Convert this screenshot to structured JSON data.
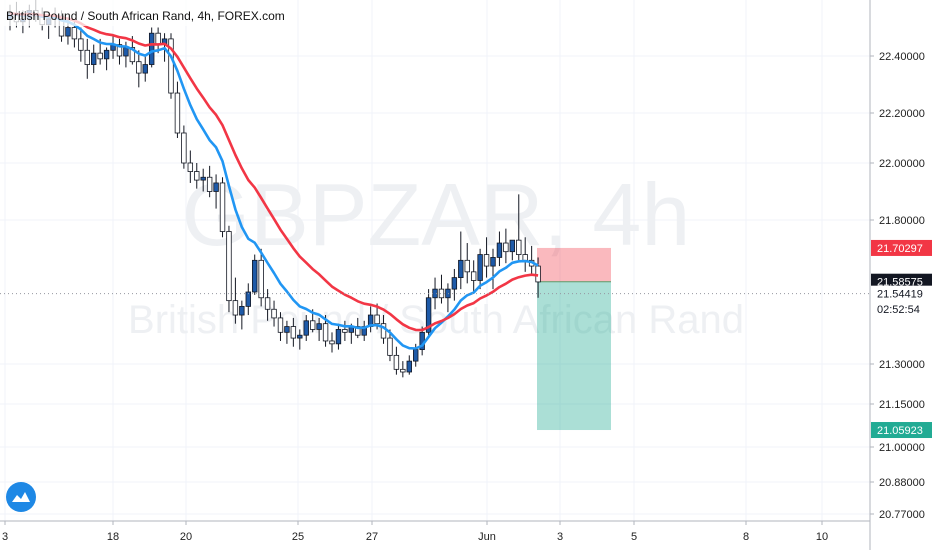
{
  "chart_data": {
    "type": "candlestick",
    "title": "British Pound / South African Rand, 4h, FOREX.com",
    "watermark_symbol": "GBPZAR, 4h",
    "watermark_name": "British Pound / South African Rand",
    "y_ticks": [
      "22.40000",
      "22.20000",
      "22.00000",
      "21.80000",
      "21.30000",
      "21.15000",
      "21.00000",
      "20.88000",
      "20.77000"
    ],
    "y_tick_values": [
      22.4,
      22.2,
      22.0,
      21.8,
      21.3,
      21.15,
      21.0,
      20.88,
      20.77
    ],
    "x_ticks": [
      "3",
      "18",
      "20",
      "25",
      "27",
      "Jun",
      "3",
      "5",
      "8",
      "10"
    ],
    "price_tags": [
      {
        "label": "21.70297",
        "value": 21.70297,
        "bg": "#f23645",
        "fg": "#ffffff",
        "role": "stop"
      },
      {
        "label": "21.58575",
        "value": 21.58575,
        "bg": "#131722",
        "fg": "#ffffff",
        "role": "last"
      },
      {
        "label": "21.54419",
        "value": 21.54419,
        "bg": "#ffffff",
        "fg": "#131722",
        "role": "crosshair"
      },
      {
        "label": "02:52:54",
        "value": 21.4917,
        "bg": "#ffffff",
        "fg": "#131722",
        "role": "countdown"
      },
      {
        "label": "21.05923",
        "value": 21.05923,
        "bg": "#22ab94",
        "fg": "#ffffff",
        "role": "target"
      }
    ],
    "position": {
      "entry": 21.58575,
      "stop": 21.70297,
      "target": 21.05923
    },
    "bar_count": 83,
    "candles": [
      [
        22.53,
        22.58,
        22.49,
        22.55
      ],
      [
        22.55,
        22.59,
        22.5,
        22.52
      ],
      [
        22.52,
        22.56,
        22.48,
        22.53
      ],
      [
        22.53,
        22.58,
        22.5,
        22.56
      ],
      [
        22.56,
        22.6,
        22.52,
        22.54
      ],
      [
        22.54,
        22.57,
        22.49,
        22.51
      ],
      [
        22.51,
        22.55,
        22.46,
        22.53
      ],
      [
        22.53,
        22.57,
        22.5,
        22.54
      ],
      [
        22.54,
        22.56,
        22.45,
        22.47
      ],
      [
        22.47,
        22.53,
        22.44,
        22.5
      ],
      [
        22.5,
        22.52,
        22.43,
        22.46
      ],
      [
        22.46,
        22.5,
        22.38,
        22.42
      ],
      [
        22.42,
        22.46,
        22.32,
        22.37
      ],
      [
        22.37,
        22.44,
        22.34,
        22.41
      ],
      [
        22.41,
        22.46,
        22.37,
        22.39
      ],
      [
        22.39,
        22.43,
        22.35,
        22.42
      ],
      [
        22.42,
        22.47,
        22.39,
        22.44
      ],
      [
        22.44,
        22.46,
        22.37,
        22.4
      ],
      [
        22.4,
        22.45,
        22.36,
        22.43
      ],
      [
        22.43,
        22.47,
        22.37,
        22.38
      ],
      [
        22.38,
        22.42,
        22.29,
        22.34
      ],
      [
        22.34,
        22.4,
        22.31,
        22.37
      ],
      [
        22.37,
        22.5,
        22.36,
        22.48
      ],
      [
        22.48,
        22.5,
        22.41,
        22.44
      ],
      [
        22.44,
        22.48,
        22.38,
        22.46
      ],
      [
        22.46,
        22.48,
        22.25,
        22.27
      ],
      [
        22.27,
        22.31,
        22.1,
        22.12
      ],
      [
        22.12,
        22.15,
        21.98,
        22.0
      ],
      [
        22.0,
        22.05,
        21.93,
        21.97
      ],
      [
        21.97,
        22.0,
        21.91,
        21.94
      ],
      [
        21.94,
        21.98,
        21.9,
        21.95
      ],
      [
        21.95,
        21.99,
        21.88,
        21.9
      ],
      [
        21.9,
        21.96,
        21.84,
        21.93
      ],
      [
        21.93,
        21.95,
        21.74,
        21.76
      ],
      [
        21.76,
        21.78,
        21.48,
        21.52
      ],
      [
        21.52,
        21.6,
        21.44,
        21.47
      ],
      [
        21.47,
        21.52,
        21.42,
        21.5
      ],
      [
        21.5,
        21.58,
        21.47,
        21.55
      ],
      [
        21.55,
        21.68,
        21.54,
        21.66
      ],
      [
        21.66,
        21.7,
        21.5,
        21.53
      ],
      [
        21.53,
        21.56,
        21.45,
        21.49
      ],
      [
        21.49,
        21.52,
        21.43,
        21.46
      ],
      [
        21.46,
        21.48,
        21.38,
        21.41
      ],
      [
        21.41,
        21.45,
        21.37,
        21.43
      ],
      [
        21.43,
        21.46,
        21.36,
        21.39
      ],
      [
        21.39,
        21.42,
        21.35,
        21.4
      ],
      [
        21.4,
        21.47,
        21.38,
        21.45
      ],
      [
        21.45,
        21.49,
        21.41,
        21.42
      ],
      [
        21.42,
        21.46,
        21.38,
        21.44
      ],
      [
        21.44,
        21.47,
        21.36,
        21.38
      ],
      [
        21.38,
        21.41,
        21.34,
        21.37
      ],
      [
        21.37,
        21.44,
        21.35,
        21.42
      ],
      [
        21.42,
        21.45,
        21.38,
        21.41
      ],
      [
        21.41,
        21.44,
        21.37,
        21.43
      ],
      [
        21.43,
        21.46,
        21.39,
        21.4
      ],
      [
        21.4,
        21.45,
        21.38,
        21.43
      ],
      [
        21.43,
        21.5,
        21.41,
        21.47
      ],
      [
        21.47,
        21.51,
        21.42,
        21.44
      ],
      [
        21.44,
        21.47,
        21.37,
        21.39
      ],
      [
        21.39,
        21.42,
        21.31,
        21.33
      ],
      [
        21.33,
        21.36,
        21.26,
        21.28
      ],
      [
        21.28,
        21.31,
        21.25,
        21.27
      ],
      [
        21.27,
        21.33,
        21.26,
        21.31
      ],
      [
        21.31,
        21.37,
        21.29,
        21.35
      ],
      [
        21.35,
        21.43,
        21.33,
        21.41
      ],
      [
        21.41,
        21.56,
        21.4,
        21.53
      ],
      [
        21.53,
        21.6,
        21.49,
        21.56
      ],
      [
        21.56,
        21.61,
        21.51,
        21.53
      ],
      [
        21.53,
        21.58,
        21.48,
        21.56
      ],
      [
        21.56,
        21.63,
        21.52,
        21.6
      ],
      [
        21.6,
        21.76,
        21.56,
        21.66
      ],
      [
        21.66,
        21.72,
        21.58,
        21.62
      ],
      [
        21.62,
        21.66,
        21.55,
        21.59
      ],
      [
        21.59,
        21.7,
        21.56,
        21.68
      ],
      [
        21.68,
        21.74,
        21.6,
        21.64
      ],
      [
        21.64,
        21.7,
        21.56,
        21.67
      ],
      [
        21.67,
        21.76,
        21.64,
        21.72
      ],
      [
        21.72,
        21.77,
        21.65,
        21.69
      ],
      [
        21.69,
        21.73,
        21.66,
        21.73
      ],
      [
        21.73,
        21.89,
        21.66,
        21.68
      ],
      [
        21.68,
        21.74,
        21.62,
        21.66
      ],
      [
        21.66,
        21.71,
        21.61,
        21.64
      ],
      [
        21.64,
        21.67,
        21.53,
        21.585
      ]
    ],
    "ema_fast": {
      "color": "#2196f3",
      "period": 10
    },
    "ema_slow": {
      "color": "#f23645",
      "period": 20
    },
    "axis_color": "#d1d4dc",
    "background": "#ffffff"
  }
}
